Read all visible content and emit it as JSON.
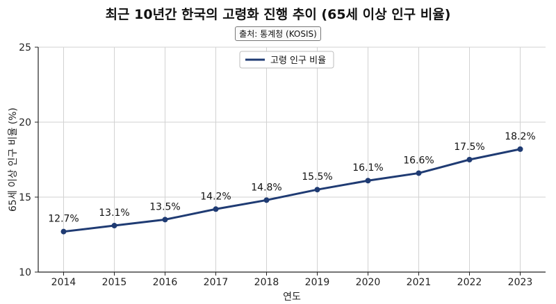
{
  "chart_data": {
    "type": "line",
    "title": "최근 10년간 한국의 고령화 진행 추이 (65세 이상 인구 비율)",
    "subtitle": "출처: 통계청 (KOSIS)",
    "xlabel": "연도",
    "ylabel": "65세 이상 인구 비율 (%)",
    "x": [
      "2014",
      "2015",
      "2016",
      "2017",
      "2018",
      "2019",
      "2020",
      "2021",
      "2022",
      "2023"
    ],
    "series": [
      {
        "name": "고령 인구 비율",
        "values": [
          12.7,
          13.1,
          13.5,
          14.2,
          14.8,
          15.5,
          16.1,
          16.6,
          17.5,
          18.2
        ],
        "labels": [
          "12.7%",
          "13.1%",
          "13.5%",
          "14.2%",
          "14.8%",
          "15.5%",
          "16.1%",
          "16.6%",
          "17.5%",
          "18.2%"
        ],
        "color": "#1f3b73"
      }
    ],
    "ylim": [
      10,
      25
    ],
    "yticks": [
      10,
      15,
      20,
      25
    ],
    "grid": true,
    "legend_position": "top-center"
  }
}
